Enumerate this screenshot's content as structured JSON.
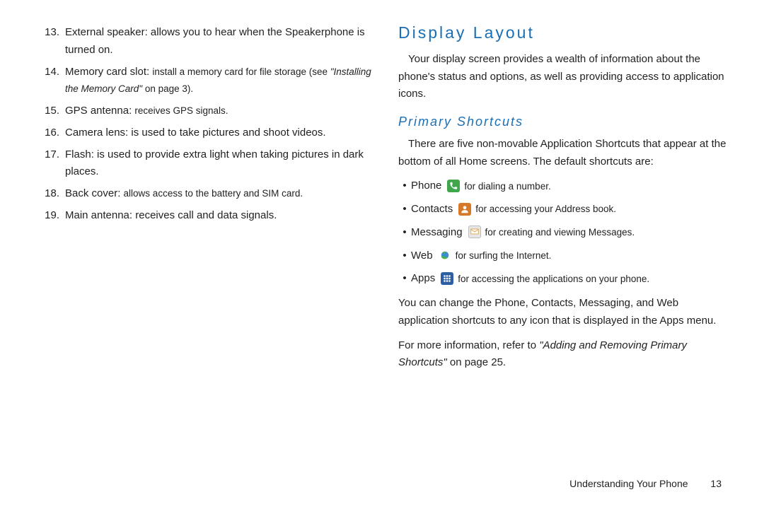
{
  "colors": {
    "heading_blue": "#1a6fb5",
    "icon_phone_bg": "#3fa64b",
    "icon_contacts_bg": "#d67a2a",
    "icon_messaging_bg": "#e6e6e6",
    "icon_web_bg": "#ffffff",
    "icon_apps_bg": "#2d5ea3",
    "text": "#222222"
  },
  "left": {
    "items": [
      {
        "n": "13.",
        "label": "External speaker",
        "sep": ": ",
        "desc": "allows you to hear when the Speakerphone is turned on.",
        "desc_small": false
      },
      {
        "n": "14.",
        "label": "Memory card slot",
        "sep": ": ",
        "desc": "install a memory card for file storage (see ",
        "desc_small": true,
        "ref": "\"Installing the Memory Card\"",
        "ref_tail": " on page 3)."
      },
      {
        "n": "15.",
        "label": "GPS antenna",
        "sep": ": ",
        "desc": "receives GPS signals.",
        "desc_small": true
      },
      {
        "n": "16.",
        "label": "Camera lens",
        "sep": ": ",
        "desc": "is used to take pictures and shoot videos.",
        "desc_small": false
      },
      {
        "n": "17.",
        "label": "Flash",
        "sep": ": ",
        "desc": "is used to provide extra light when taking pictures in dark places.",
        "desc_small": false
      },
      {
        "n": "18.",
        "label": "Back cover",
        "sep": ": ",
        "desc": "allows access to the battery and SIM card.",
        "desc_small": true
      },
      {
        "n": "19.",
        "label": "Main antenna",
        "sep": ": ",
        "desc": "receives call and data signals.",
        "desc_small": false
      }
    ]
  },
  "right": {
    "heading": "Display Layout",
    "intro": "Your display screen provides a wealth of information about the phone's status and options, as well as providing access to application icons.",
    "sub": "Primary Shortcuts",
    "sub_intro": "There are five non-movable Application Shortcuts that appear at the bottom of all Home screens. The default shortcuts are:",
    "shortcuts": [
      {
        "name": "Phone",
        "icon": "phone",
        "desc": "for dialing a number."
      },
      {
        "name": "Contacts",
        "icon": "contacts",
        "desc": "for accessing your Address book."
      },
      {
        "name": "Messaging",
        "icon": "messaging",
        "desc": "for creating and viewing Messages."
      },
      {
        "name": "Web",
        "icon": "web",
        "desc": "for surfing the Internet."
      },
      {
        "name": "Apps",
        "icon": "apps",
        "desc": "for accessing the applications on your phone."
      }
    ],
    "after1": "You can change the Phone, Contacts, Messaging, and Web application shortcuts to any icon that is displayed in the Apps menu.",
    "after2_pre": "For more information, refer to ",
    "after2_ref": "\"Adding and Removing Primary Shortcuts\"",
    "after2_tail": "  on page 25."
  },
  "footer": {
    "text": "Understanding Your Phone",
    "page": "13"
  }
}
